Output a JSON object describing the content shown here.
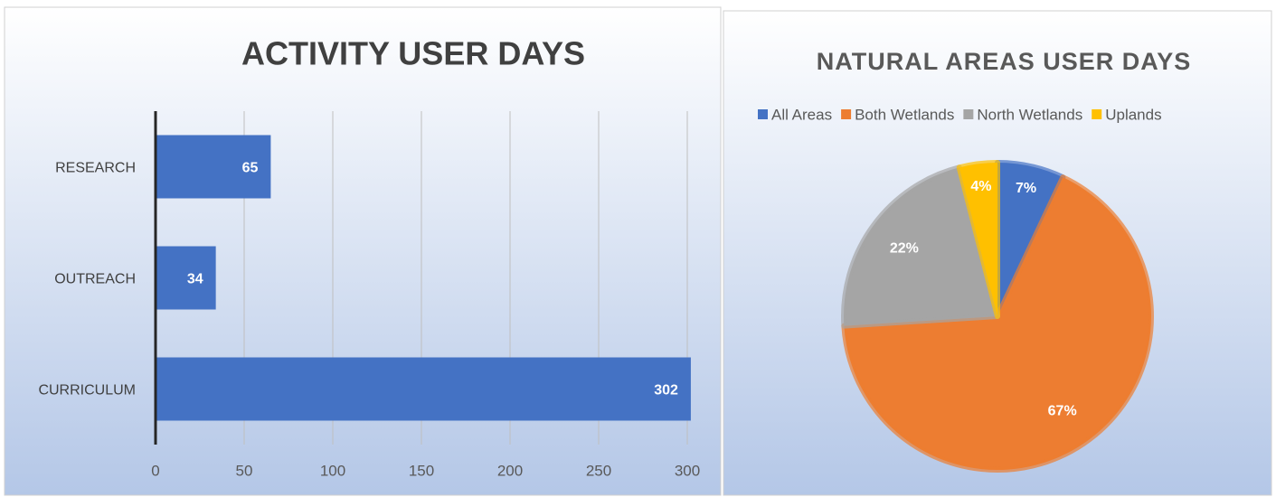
{
  "chart_data": [
    {
      "type": "hbar",
      "title": "ACTIVITY USER DAYS",
      "categories": [
        "RESEARCH",
        "OUTREACH",
        "CURRICULUM"
      ],
      "values": [
        65,
        34,
        302
      ],
      "color": "#4472c4",
      "xlim": [
        0,
        300
      ],
      "xticks": [
        0,
        50,
        100,
        150,
        200,
        250,
        300
      ],
      "grid": true
    },
    {
      "type": "pie",
      "title": "NATURAL AREAS USER DAYS",
      "categories": [
        "All Areas",
        "Both Wetlands",
        "North Wetlands",
        "Uplands"
      ],
      "values": [
        7,
        67,
        22,
        4
      ],
      "value_labels": [
        "7%",
        "67%",
        "22%",
        "4%"
      ],
      "colors": [
        "#4472c4",
        "#ed7d31",
        "#a5a5a5",
        "#ffc000"
      ],
      "legend": "top"
    }
  ]
}
